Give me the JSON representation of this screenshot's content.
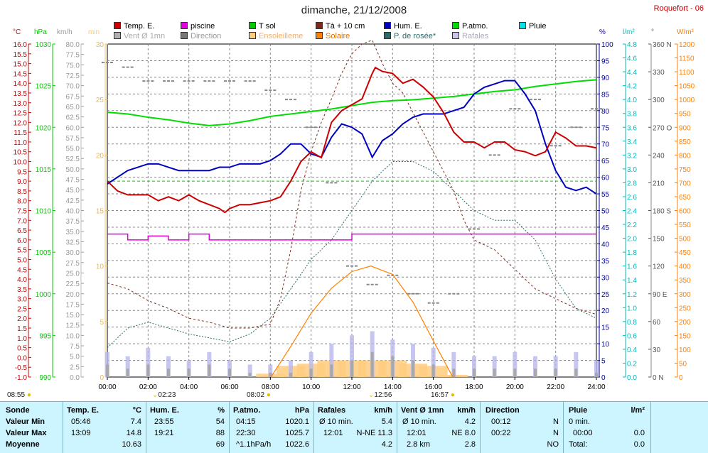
{
  "page": {
    "title": "dimanche, 21/12/2008",
    "site": "Roquefort - 06"
  },
  "legend": [
    {
      "label": "Temp. E.",
      "color": "#cc0000"
    },
    {
      "label": "piscine",
      "color": "#e000e0"
    },
    {
      "label": "T sol",
      "color": "#00cc00"
    },
    {
      "label": "Tà + 10 cm",
      "color": "#7a2a1a"
    },
    {
      "label": "Hum. E.",
      "color": "#0000c0"
    },
    {
      "label": "P.atmo.",
      "color": "#00dd00"
    },
    {
      "label": "Pluie",
      "color": "#00e5e5"
    },
    {
      "label": "Vent Ø 1mn",
      "color": "#b0b0b0",
      "dim": true
    },
    {
      "label": "Direction",
      "color": "#777777",
      "dim": true
    },
    {
      "label": "Ensoleilleme",
      "color": "#ffcc80",
      "dim": true
    },
    {
      "label": "Solaire",
      "color": "#ff8000"
    },
    {
      "label": "P. de rosée*",
      "color": "#2a6a6a"
    },
    {
      "label": "Rafales",
      "color": "#c8c8ee",
      "dim": true
    }
  ],
  "axes": {
    "temp": {
      "unit": "°C",
      "color": "#cc0000",
      "ticks": [
        "16.0",
        "15.5",
        "15.0",
        "14.5",
        "14.0",
        "13.5",
        "13.0",
        "12.5",
        "12.0",
        "11.5",
        "11.0",
        "10.5",
        "10.0",
        "9.5",
        "9.0",
        "8.5",
        "8.0",
        "7.5",
        "7.0",
        "6.5",
        "6.0",
        "5.5",
        "5.0",
        "4.5",
        "4.0",
        "3.5",
        "3.0",
        "2.5",
        "2.0",
        "1.5",
        "1.0",
        "0.5",
        "0.0",
        "-0.5",
        "-1.0"
      ]
    },
    "press": {
      "unit": "hPa",
      "color": "#00cc00",
      "ticks": [
        "1030",
        "1025",
        "1020",
        "1015",
        "1010",
        "1005",
        "1000",
        "995",
        "990"
      ]
    },
    "wind": {
      "unit": "km/h",
      "color": "#999999",
      "ticks": [
        "80.0",
        "77.5",
        "75.0",
        "72.5",
        "70.0",
        "67.5",
        "65.0",
        "62.5",
        "60.0",
        "57.5",
        "55.0",
        "52.5",
        "50.0",
        "47.5",
        "45.0",
        "42.5",
        "40.0",
        "37.5",
        "35.0",
        "32.5",
        "30.0",
        "27.5",
        "25.0",
        "22.5",
        "20.0",
        "17.5",
        "15.0",
        "12.5",
        "10.0",
        "7.5",
        "5.0",
        "2.5",
        "0.0"
      ]
    },
    "sun": {
      "unit": "min",
      "color": "#ffcc66",
      "ticks": [
        "30",
        "25",
        "20",
        "15",
        "10",
        "5",
        "0"
      ]
    },
    "hum": {
      "unit": "%",
      "color": "#000099",
      "ticks": [
        "100",
        "95",
        "90",
        "85",
        "80",
        "75",
        "70",
        "65",
        "60",
        "55",
        "50",
        "45",
        "40",
        "35",
        "30",
        "25",
        "20",
        "15",
        "10",
        "5",
        "0"
      ]
    },
    "rain": {
      "unit": "l/m²",
      "color": "#00bbbb",
      "ticks": [
        "4.8",
        "4.6",
        "4.4",
        "4.2",
        "4.0",
        "3.8",
        "3.6",
        "3.4",
        "3.2",
        "3.0",
        "2.8",
        "2.6",
        "2.4",
        "2.2",
        "2.0",
        "1.8",
        "1.6",
        "1.4",
        "1.2",
        "1.0",
        "0.8",
        "0.6",
        "0.4",
        "0.2",
        "0.0"
      ]
    },
    "dir": {
      "unit": "°",
      "color": "#555555",
      "ticks": [
        {
          "v": "360 N"
        },
        {
          "v": "330"
        },
        {
          "v": "300"
        },
        {
          "v": "270 O"
        },
        {
          "v": "240"
        },
        {
          "v": "210"
        },
        {
          "v": "180 S"
        },
        {
          "v": "150"
        },
        {
          "v": "120"
        },
        {
          "v": "90 E"
        },
        {
          "v": "60"
        },
        {
          "v": "30"
        },
        {
          "v": "0 N"
        }
      ]
    },
    "solar": {
      "unit": "W/m²",
      "color": "#ff8000",
      "ticks": [
        "1200",
        "1150",
        "1100",
        "1050",
        "1000",
        "950",
        "900",
        "850",
        "800",
        "750",
        "700",
        "650",
        "600",
        "550",
        "500",
        "450",
        "400",
        "350",
        "300",
        "250",
        "200",
        "150",
        "100",
        "50",
        "0"
      ]
    },
    "x": {
      "ticks": [
        "00:00",
        "02:00",
        "04:00",
        "06:00",
        "08:00",
        "10:00",
        "12:00",
        "14:00",
        "16:00",
        "18:00",
        "20:00",
        "22:00",
        "24:00"
      ]
    }
  },
  "sun": {
    "sunrise": "08:02",
    "noon": "12:56",
    "sunset": "16:57",
    "moonrise": "08:55",
    "moonset": "02:23"
  },
  "chart_data": {
    "type": "line",
    "title": "dimanche, 21/12/2008",
    "x_unit": "hour",
    "xlim": [
      0,
      24
    ],
    "series": [
      {
        "name": "Temp. E.",
        "axis": "temp",
        "x": [
          0,
          0.5,
          1,
          1.5,
          2,
          2.5,
          3,
          3.5,
          4,
          4.5,
          5,
          5.5,
          5.77,
          6,
          6.5,
          7,
          7.5,
          8,
          8.5,
          9,
          9.5,
          10,
          10.5,
          11,
          11.5,
          12,
          12.5,
          13,
          13.15,
          13.5,
          14,
          14.5,
          15,
          15.5,
          16,
          16.5,
          17,
          17.5,
          18,
          18.5,
          19,
          19.5,
          20,
          20.5,
          21,
          21.5,
          22,
          22.5,
          23,
          23.5,
          24
        ],
        "y": [
          9.0,
          8.5,
          8.3,
          8.3,
          8.3,
          8.0,
          8.2,
          8.0,
          8.3,
          8.0,
          7.8,
          7.6,
          7.4,
          7.6,
          7.8,
          7.8,
          7.9,
          8.0,
          8.2,
          9.0,
          10.0,
          10.5,
          10.2,
          12.0,
          12.6,
          12.9,
          13.2,
          14.5,
          14.8,
          14.6,
          14.5,
          14.0,
          14.2,
          13.8,
          13.3,
          12.5,
          11.5,
          11.0,
          11.0,
          10.7,
          11.0,
          11.0,
          10.6,
          10.5,
          10.3,
          10.5,
          11.5,
          11.2,
          10.8,
          10.8,
          10.7
        ]
      },
      {
        "name": "piscine",
        "axis": "temp",
        "x": [
          0,
          1,
          2,
          3,
          4,
          5,
          6,
          7,
          8,
          9,
          10,
          11,
          12,
          13,
          14,
          15,
          16,
          17,
          18,
          19,
          20,
          21,
          22,
          23,
          24
        ],
        "y": [
          6.3,
          6.0,
          6.2,
          6.0,
          6.3,
          6.0,
          6.0,
          6.0,
          6.0,
          6.0,
          6.0,
          6.0,
          6.3,
          6.3,
          6.3,
          6.3,
          6.3,
          6.3,
          6.3,
          6.3,
          6.3,
          6.3,
          6.3,
          6.3,
          6.3
        ]
      },
      {
        "name": "T sol",
        "axis": "temp",
        "x": [
          0,
          2,
          4,
          6,
          8,
          10,
          12,
          14,
          16,
          18,
          20,
          22,
          24
        ],
        "y": [
          9.0,
          9.0,
          9.0,
          9.0,
          9.0,
          9.0,
          9.0,
          9.0,
          9.0,
          9.0,
          9.0,
          9.0,
          9.0
        ]
      },
      {
        "name": "Tà + 10 cm",
        "axis": "temp",
        "x": [
          0,
          1,
          2,
          3,
          4,
          5,
          6,
          7,
          8,
          8.5,
          9,
          9.5,
          10,
          10.5,
          11,
          11.5,
          12,
          12.5,
          13,
          13.5,
          14,
          14.5,
          15,
          15.5,
          16,
          16.5,
          17,
          17.5,
          18,
          19,
          20,
          21,
          22,
          23,
          24
        ],
        "y": [
          3.8,
          3.5,
          2.9,
          2.5,
          2.0,
          1.8,
          1.5,
          1.5,
          1.7,
          3.0,
          5.5,
          8.5,
          10.5,
          12.0,
          13.2,
          14.5,
          15.5,
          16.0,
          16.2,
          15.0,
          14.0,
          13.5,
          12.5,
          11.5,
          10.5,
          9.5,
          8.5,
          7.0,
          6.0,
          5.5,
          4.5,
          3.5,
          3.0,
          2.5,
          2.2
        ]
      },
      {
        "name": "P. de rosée*",
        "axis": "temp",
        "x": [
          0,
          1,
          2,
          3,
          4,
          5,
          6,
          7,
          8,
          9,
          10,
          11,
          12,
          13,
          14,
          15,
          16,
          17,
          18,
          19,
          20,
          21,
          22,
          23,
          24
        ],
        "y": [
          0.5,
          1.5,
          1.8,
          1.5,
          1.2,
          1.0,
          0.8,
          1.2,
          2.0,
          3.5,
          5.0,
          6.0,
          7.5,
          9.0,
          10.0,
          10.0,
          9.5,
          8.5,
          7.5,
          7.0,
          7.0,
          6.0,
          4.0,
          2.5,
          2.0
        ]
      },
      {
        "name": "Hum. E.",
        "axis": "hum",
        "x": [
          0,
          0.5,
          1,
          1.5,
          2,
          2.5,
          3,
          3.5,
          4,
          4.5,
          5,
          5.5,
          6,
          6.5,
          7,
          7.5,
          8,
          8.5,
          9,
          9.5,
          10,
          10.5,
          11,
          11.5,
          12,
          12.5,
          13,
          13.5,
          14,
          14.5,
          15,
          15.5,
          16,
          16.5,
          17,
          17.5,
          18,
          18.5,
          19,
          19.5,
          20,
          20.5,
          21,
          21.5,
          22,
          22.5,
          23,
          23.5,
          24
        ],
        "y": [
          58,
          60,
          62,
          63,
          64,
          64,
          63,
          62,
          62,
          62,
          62,
          63,
          63,
          64,
          64,
          64,
          65,
          67,
          70,
          70,
          67,
          66,
          72,
          76,
          75,
          73,
          66,
          71,
          73,
          76,
          78,
          79,
          79,
          79,
          80,
          81,
          85,
          87,
          88,
          89,
          89,
          85,
          80,
          70,
          62,
          57,
          56,
          57,
          55
        ]
      },
      {
        "name": "P.atmo.",
        "axis": "press",
        "x": [
          0,
          1,
          2,
          3,
          4,
          5,
          6,
          7,
          8,
          9,
          10,
          11,
          12,
          13,
          14,
          15,
          16,
          17,
          18,
          19,
          20,
          21,
          22,
          23,
          24
        ],
        "y": [
          1021.8,
          1021.6,
          1021.2,
          1020.9,
          1020.5,
          1020.2,
          1020.4,
          1020.8,
          1021.3,
          1021.6,
          1021.9,
          1022.2,
          1022.6,
          1023.0,
          1023.2,
          1023.3,
          1023.5,
          1023.7,
          1024.0,
          1024.3,
          1024.5,
          1024.9,
          1025.2,
          1025.5,
          1025.7
        ]
      },
      {
        "name": "Solaire",
        "axis": "solar",
        "x": [
          8.03,
          9,
          10,
          11,
          12,
          12.93,
          14,
          15,
          16,
          16.95
        ],
        "y": [
          0,
          110,
          230,
          320,
          380,
          400,
          370,
          270,
          130,
          0
        ]
      },
      {
        "name": "Vent Ø 1mn",
        "axis": "wind",
        "x": [
          0,
          1,
          2,
          3,
          4,
          5,
          6,
          7,
          8,
          9,
          10,
          11,
          12,
          13,
          14,
          15,
          16,
          17,
          18,
          19,
          20,
          21,
          22,
          23,
          24
        ],
        "y": [
          3,
          2,
          3,
          2,
          2,
          3,
          2,
          1,
          1,
          1,
          2,
          3,
          4,
          6,
          5,
          4,
          3,
          2,
          2,
          2,
          2,
          2,
          2,
          2,
          1
        ]
      },
      {
        "name": "Rafales",
        "axis": "wind",
        "x": [
          0,
          1,
          2,
          3,
          4,
          5,
          6,
          7,
          8,
          9,
          10,
          11,
          12,
          13,
          14,
          15,
          16,
          17,
          18,
          19,
          20,
          21,
          22,
          23,
          24
        ],
        "y": [
          6,
          5,
          7,
          5,
          4,
          6,
          4,
          3,
          3,
          4,
          6,
          8,
          10,
          11,
          9,
          8,
          7,
          6,
          5,
          5,
          6,
          5,
          5,
          6,
          4
        ]
      },
      {
        "name": "Direction",
        "axis": "dir",
        "x": [
          0,
          1,
          2,
          3,
          4,
          5,
          6,
          7,
          8,
          9,
          10,
          11,
          12,
          13,
          14,
          15,
          16,
          17,
          18,
          19,
          20,
          21,
          22,
          23,
          24
        ],
        "y": [
          340,
          335,
          320,
          320,
          320,
          320,
          320,
          320,
          310,
          300,
          270,
          210,
          120,
          100,
          110,
          90,
          80,
          90,
          160,
          240,
          290,
          300,
          250,
          270,
          290
        ]
      },
      {
        "name": "Ensoleilleme",
        "axis": "sun",
        "x": [
          8,
          9,
          10,
          11,
          12,
          13,
          14,
          15,
          16,
          17
        ],
        "y": [
          0.3,
          1,
          1.2,
          1.5,
          1.5,
          1.5,
          1.5,
          1.2,
          1.0,
          0.2
        ]
      }
    ],
    "summary_table": {
      "headers": [
        "Sonde",
        "Temp. E.",
        "°C",
        "Hum. E.",
        "%",
        "P.atmo.",
        "hPa",
        "Rafales",
        "km/h",
        "Vent Ø 1mn",
        "km/h",
        "Direction",
        "Pluie",
        "l/m²"
      ],
      "rows": [
        {
          "label": "Valeur Min",
          "temp": [
            "05:46",
            "7.4"
          ],
          "hum": [
            "23:55",
            "54"
          ],
          "press": [
            "04:15",
            "1020.1"
          ],
          "gust": [
            "Ø 10 min.",
            "5.4"
          ],
          "wind": [
            "Ø 10 min.",
            "4.2"
          ],
          "dir": [
            "00:12",
            "N"
          ],
          "rain": [
            "0 min.",
            ""
          ]
        },
        {
          "label": "Valeur Max",
          "temp": [
            "13:09",
            "14.8"
          ],
          "hum": [
            "19:21",
            "88"
          ],
          "press": [
            "22:30",
            "1025.7"
          ],
          "gust": [
            "12:01",
            "N-NE 11.3"
          ],
          "wind": [
            "12:01",
            "NE 8.0"
          ],
          "dir": [
            "00:22",
            "N"
          ],
          "rain": [
            "00:00",
            "0.0"
          ]
        },
        {
          "label": "Moyenne",
          "temp": [
            "",
            "10.63"
          ],
          "hum": [
            "",
            "69"
          ],
          "press": [
            "^1.1hPa/h",
            "1022.6"
          ],
          "gust": [
            "",
            "4.2"
          ],
          "wind": [
            "2.8 km",
            "2.8"
          ],
          "dir": [
            "",
            "NO"
          ],
          "rain": [
            "Total:",
            "0.0"
          ]
        }
      ]
    }
  }
}
